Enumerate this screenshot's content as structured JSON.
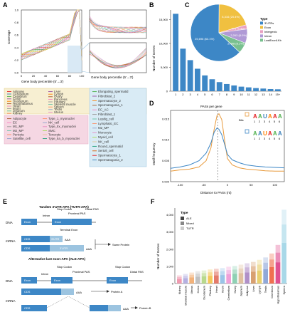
{
  "figure": {
    "panel_labels": [
      "A",
      "B",
      "C",
      "D",
      "E",
      "F"
    ]
  },
  "panelA": {
    "ylabel": "Coverage",
    "xlabel_left": "Gene body percentile (5'→3')",
    "xlabel_right": "Gene body percentile (5'→3')",
    "yticks": [
      "0.0",
      "0.2",
      "0.4",
      "0.6",
      "0.8",
      "1.0"
    ],
    "xticks": [
      "0",
      "20",
      "40",
      "60",
      "80",
      "100"
    ],
    "tissues_col1": [
      "Adipose",
      "Cerebellum",
      "Cerebrum",
      "Colon",
      "Duodenum",
      "Hypothalamus",
      "Heart",
      "Ileum",
      "Jejunum",
      "Kidney"
    ],
    "tissues_col2": [
      "Liver",
      "Lymph",
      "Ovary",
      "Pancreas",
      "Pituitary",
      "Skeletal muscle",
      "Spleen",
      "Testis",
      "Uterus"
    ],
    "celltypes_col1": [
      "Adipocyte",
      "EC",
      "M1_MP",
      "M2_MP",
      "Pericyte",
      "Satellite_cell"
    ],
    "celltypes_col2": [
      "Type_1_myonuclei",
      "NK_cell",
      "Type_IIx_myonuclei",
      "SMC",
      "Tenocyte",
      "Type_IIa_b_myonuclei"
    ],
    "spermatid_col1": [
      "Elongating_spermatid",
      "Fibroblast_2",
      "Spermatocyte_2",
      "Spermatogonia_1",
      "EC_AC",
      "Fibroblast_1",
      "Leydig_cell",
      "Lymphatic_EC",
      "M2_MP",
      "Monocyte",
      "Myoid_cell",
      "NK_cell",
      "Round_spermatid",
      "Sertoli_cell",
      "Spermatocyte_1",
      "Spermatogonia_2"
    ]
  },
  "chart_data": [
    {
      "panel": "B",
      "type": "bar",
      "ylabel": "Number of Genes",
      "categories": [
        "1",
        "2",
        "3",
        "4",
        "5",
        "6",
        "7",
        "8",
        "9",
        "10",
        "11",
        "12",
        "13",
        "14",
        "15+"
      ],
      "values": [
        16200,
        8900,
        6500,
        4700,
        3300,
        2500,
        1900,
        1500,
        1200,
        950,
        800,
        650,
        550,
        450,
        400
      ],
      "yticks": [
        "0",
        "5,000",
        "10,000",
        "15,000"
      ],
      "ylim": [
        0,
        17000
      ],
      "color": "#3d87c6"
    },
    {
      "panel": "C",
      "type": "pie",
      "legend_title": "Type",
      "labels": [
        "3'UTRs",
        "Exon",
        "Intergenic",
        "Intron",
        "LastExon1Kb"
      ],
      "values": [
        63.1,
        20.4,
        2.4,
        8.0,
        6.1
      ],
      "slice_texts": [
        "25,696 (63.1%)",
        "8,316 (20.4%)",
        "975 (2.4%)",
        "3,263 (8.0%)",
        "2,498 (6.1%)"
      ],
      "colors": [
        "#3d87c6",
        "#f0c040",
        "#e8a0c0",
        "#b09ad6",
        "#79c08f"
      ]
    },
    {
      "panel": "D",
      "type": "line",
      "title": "PASs per gene",
      "xlabel": "Distance to PASs (nt)",
      "ylabel": "Motif frequency",
      "xticks": [
        "-100",
        "-50",
        "0",
        "50",
        "100"
      ],
      "yticks": [
        "0.000",
        "0.005",
        "0.010",
        "0.015"
      ],
      "xlim": [
        -120,
        120
      ],
      "ylim": [
        0,
        0.017
      ],
      "series": [
        {
          "name": "Bits",
          "color": "#e89a3c",
          "x": [
            -120,
            -100,
            -80,
            -60,
            -45,
            -35,
            -28,
            -22,
            -18,
            -12,
            -5,
            0,
            10,
            25,
            40,
            60,
            80,
            100,
            120
          ],
          "y": [
            0.0025,
            0.0028,
            0.003,
            0.0035,
            0.005,
            0.008,
            0.0125,
            0.0158,
            0.0162,
            0.0148,
            0.009,
            0.0055,
            0.004,
            0.0033,
            0.003,
            0.0028,
            0.0026,
            0.0025,
            0.0025
          ]
        },
        {
          "name": "",
          "color": "#3d87c6",
          "x": [
            -120,
            -100,
            -80,
            -60,
            -45,
            -35,
            -28,
            -22,
            -18,
            -12,
            -5,
            0,
            10,
            25,
            40,
            60,
            80,
            100,
            120
          ],
          "y": [
            0.0032,
            0.0035,
            0.004,
            0.005,
            0.0068,
            0.0092,
            0.0118,
            0.0128,
            0.0125,
            0.0112,
            0.0085,
            0.0065,
            0.0052,
            0.0045,
            0.004,
            0.0037,
            0.0035,
            0.0034,
            0.0033
          ]
        }
      ],
      "motif_axis": [
        "1",
        "2",
        "3",
        "4",
        "5",
        "6"
      ],
      "motif_ylabel": "Bits"
    },
    {
      "panel": "F",
      "type": "bar",
      "ylabel": "Number of Genes",
      "legend_title": "Type",
      "legend": [
        "ALE",
        "Mixed",
        "TUTR"
      ],
      "categories": [
        "Kidney",
        "Skeletal muscle",
        "Uterus",
        "Colon",
        "Duodenum",
        "Pituitary",
        "Heart",
        "Ileum",
        "Cerebellum",
        "Ovary",
        "Jejunum",
        "Adipose",
        "Liver",
        "Lymph",
        "Testis",
        "Cerebrum",
        "Hypothalamus",
        "Spleen"
      ],
      "yticks": [
        "0",
        "1,000",
        "2,000",
        "3,000",
        "4,000"
      ],
      "ylim": [
        0,
        4400
      ],
      "totals": [
        480,
        560,
        640,
        720,
        760,
        820,
        860,
        900,
        980,
        1020,
        1100,
        1180,
        1260,
        1380,
        1520,
        1750,
        2250,
        4300
      ],
      "colors": [
        "#f09ab0",
        "#b5b0e0",
        "#f2b27a",
        "#c0c0c0",
        "#b8d98c",
        "#f5c75a",
        "#e47b6b",
        "#9bc4e8",
        "#f0a0d8",
        "#8fd0b4",
        "#e0c0a0",
        "#b090c8",
        "#d8a070",
        "#e8d070",
        "#90a8d8",
        "#f07050",
        "#e05090",
        "#a8d8e8"
      ]
    }
  ],
  "panelE": {
    "title_tutr": "Tandem 3'UTR-APA (TUTR-APA)",
    "title_ale": "Alternative last exon-APA (ALE-APA)",
    "dna_label": "DNA",
    "mrna_label": "mRNA",
    "exon": "Exon",
    "intron": "Intron",
    "cds": "CDS",
    "utr": "3'UTR",
    "stop_codon": "Stop Codon",
    "proximal_pas": "Proximal PAS",
    "distal_pas": "Distal PAS",
    "terminal_exon": "Terminal Exon",
    "aaa": "AAA",
    "same_protein": "Same Protein",
    "protein_a": "Protein A",
    "protein_b": "Protein B"
  }
}
